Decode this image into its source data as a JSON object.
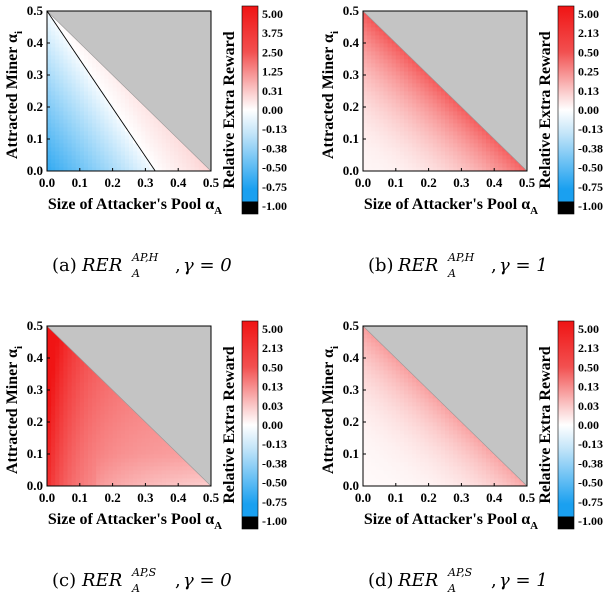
{
  "colors": {
    "grey_region": "#c4c4c4",
    "frame": "#000000",
    "scale_negative_low": "#000000",
    "scale_negative": "#1aa0f0",
    "scale_zero": "#ffffff",
    "scale_positive": "#f01414"
  },
  "colorbar": {
    "label": "Relative Extra Reward",
    "ticks_a": [
      "5.00",
      "3.75",
      "2.50",
      "1.25",
      "0.31",
      "0.00",
      "-0.13",
      "-0.38",
      "-0.50",
      "-0.75",
      "-1.00"
    ],
    "ticks_b": [
      "5.00",
      "2.13",
      "0.50",
      "0.25",
      "0.13",
      "0.00",
      "-0.13",
      "-0.38",
      "-0.50",
      "-0.75",
      "-1.00"
    ],
    "ticks_c": [
      "5.00",
      "2.13",
      "0.50",
      "0.13",
      "0.03",
      "0.00",
      "-0.13",
      "-0.38",
      "-0.50",
      "-0.75",
      "-1.00"
    ]
  },
  "axes": {
    "xlabel_main": "Size of Attacker's Pool α",
    "xlabel_sub": "A",
    "ylabel_main": "Attracted Miner α",
    "ylabel_sub": "i",
    "xticks": [
      "0.0",
      "0.1",
      "0.2",
      "0.3",
      "0.4",
      "0.5"
    ],
    "yticks": [
      "0.0",
      "0.1",
      "0.2",
      "0.3",
      "0.4",
      "0.5"
    ]
  },
  "captions": [
    {
      "letter": "(a)",
      "base": "RER",
      "sub": "A",
      "sup": "AP,H",
      "gamma": "γ = 0"
    },
    {
      "letter": "(b)",
      "base": "RER",
      "sub": "A",
      "sup": "AP,H",
      "gamma": "γ = 1"
    },
    {
      "letter": "(c)",
      "base": "RER",
      "sub": "A",
      "sup": "AP,S",
      "gamma": "γ = 0"
    },
    {
      "letter": "(d)",
      "base": "RER",
      "sub": "A",
      "sup": "AP,S",
      "gamma": "γ = 1"
    }
  ],
  "chart_data": [
    {
      "type": "heatmap",
      "panel": "a",
      "x_range": [
        0,
        0.5
      ],
      "y_range": [
        0,
        0.5
      ],
      "valid_region": "x + y <= 0.5",
      "zero_contour": [
        [
          0,
          0.5
        ],
        [
          0.33,
          0
        ]
      ],
      "pattern": "negative (blue) below zero contour, strongest at origin; slightly positive between contour and diagonal"
    },
    {
      "type": "heatmap",
      "panel": "b",
      "x_range": [
        0,
        0.5
      ],
      "y_range": [
        0,
        0.5
      ],
      "valid_region": "x + y <= 0.5",
      "pattern": "positive everywhere, increasing toward the diagonal x + y = 0.5"
    },
    {
      "type": "heatmap",
      "panel": "c",
      "x_range": [
        0,
        0.5
      ],
      "y_range": [
        0,
        0.5
      ],
      "valid_region": "x + y <= 0.5",
      "pattern": "strongly positive, maximum near x = 0, weakest near the x axis at large x"
    },
    {
      "type": "heatmap",
      "panel": "d",
      "x_range": [
        0,
        0.5
      ],
      "y_range": [
        0,
        0.5
      ],
      "valid_region": "x + y <= 0.5",
      "pattern": "mildly positive, increasing toward the diagonal and toward x = 0"
    }
  ]
}
